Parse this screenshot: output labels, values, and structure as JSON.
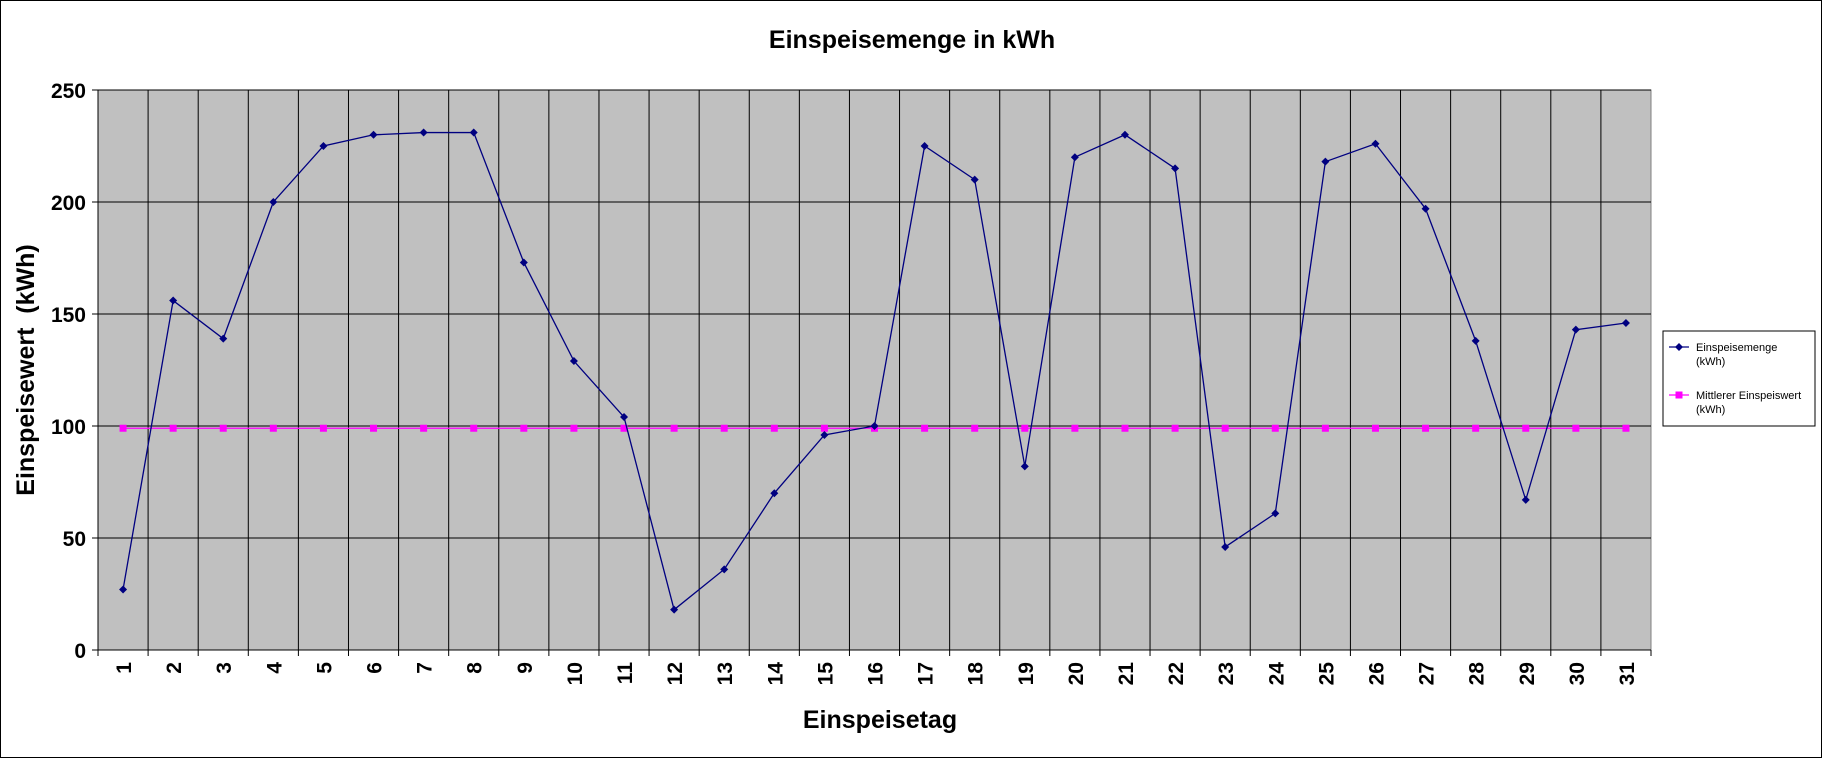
{
  "chart_data": {
    "type": "line",
    "title": "Einspeisemenge in kWh",
    "xlabel": "Einspeisetag",
    "ylabel": "Einspeisewert  (kWh)",
    "x": [
      1,
      2,
      3,
      4,
      5,
      6,
      7,
      8,
      9,
      10,
      11,
      12,
      13,
      14,
      15,
      16,
      17,
      18,
      19,
      20,
      21,
      22,
      23,
      24,
      25,
      26,
      27,
      28,
      29,
      30,
      31
    ],
    "ylim": [
      0,
      250
    ],
    "yticks": [
      0,
      50,
      100,
      150,
      200,
      250
    ],
    "grid": true,
    "legend_position": "right",
    "series": [
      {
        "name_lines": [
          "Einspeisemenge",
          "(kWh)"
        ],
        "color": "#000080",
        "marker": "diamond",
        "values": [
          27,
          156,
          139,
          200,
          225,
          230,
          231,
          231,
          173,
          129,
          104,
          18,
          36,
          70,
          96,
          100,
          225,
          210,
          82,
          220,
          230,
          215,
          46,
          61,
          218,
          226,
          197,
          138,
          67,
          143,
          146
        ]
      },
      {
        "name_lines": [
          "Mittlerer Einspeiswert",
          "(kWh)"
        ],
        "color": "#ff00ff",
        "marker": "square",
        "values": [
          99,
          99,
          99,
          99,
          99,
          99,
          99,
          99,
          99,
          99,
          99,
          99,
          99,
          99,
          99,
          99,
          99,
          99,
          99,
          99,
          99,
          99,
          99,
          99,
          99,
          99,
          99,
          99,
          99,
          99,
          99
        ]
      }
    ]
  },
  "colors": {
    "plot_background": "#c0c0c0",
    "gridline": "#000000"
  }
}
